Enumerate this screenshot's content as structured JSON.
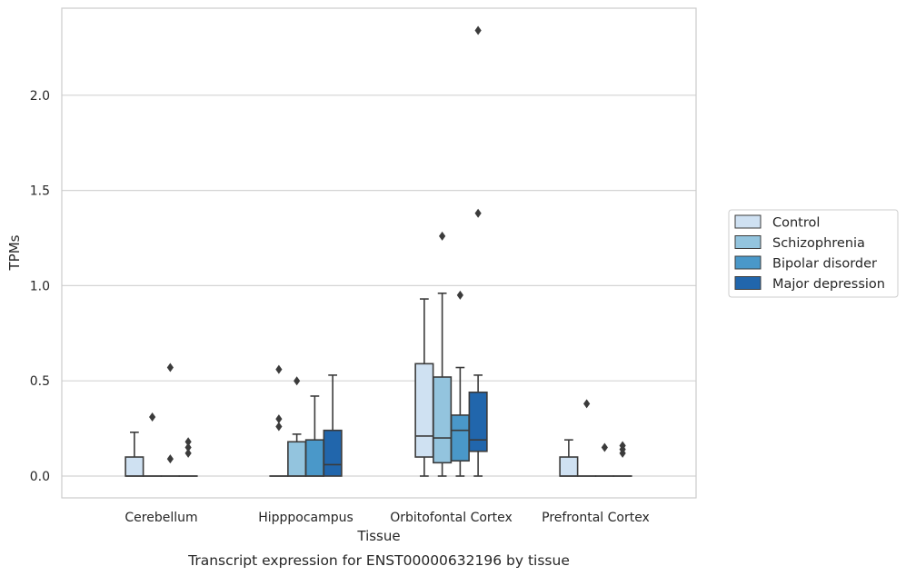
{
  "chart_data": {
    "type": "box",
    "caption": "Transcript expression for ENST00000632196 by tissue",
    "xlabel": "Tissue",
    "ylabel": "TPMs",
    "ylim": [
      -0.11,
      2.46
    ],
    "yticks": [
      0.0,
      0.5,
      1.0,
      1.5,
      2.0
    ],
    "ytick_labels": [
      "0.0",
      "0.5",
      "1.0",
      "1.5",
      "2.0"
    ],
    "grid": "horizontal",
    "legend_position": "right",
    "categories": [
      "Cerebellum",
      "Hipppocampus",
      "Orbitofontal Cortex",
      "Prefrontal Cortex"
    ],
    "series": [
      {
        "name": "Control",
        "color": "#cfe1f2",
        "boxes": [
          {
            "min": 0.0,
            "q1": 0.0,
            "median": 0.0,
            "q3": 0.1,
            "max": 0.23,
            "outliers": []
          },
          {
            "min": 0.0,
            "q1": 0.0,
            "median": 0.0,
            "q3": 0.0,
            "max": 0.0,
            "outliers": [
              0.26,
              0.3,
              0.56
            ]
          },
          {
            "min": 0.0,
            "q1": 0.1,
            "median": 0.21,
            "q3": 0.59,
            "max": 0.93,
            "outliers": []
          },
          {
            "min": 0.0,
            "q1": 0.0,
            "median": 0.0,
            "q3": 0.1,
            "max": 0.19,
            "outliers": []
          }
        ]
      },
      {
        "name": "Schizophrenia",
        "color": "#93c4de",
        "boxes": [
          {
            "min": 0.0,
            "q1": 0.0,
            "median": 0.0,
            "q3": 0.0,
            "max": 0.0,
            "outliers": [
              0.31
            ]
          },
          {
            "min": 0.0,
            "q1": 0.0,
            "median": 0.0,
            "q3": 0.18,
            "max": 0.22,
            "outliers": [
              0.5
            ]
          },
          {
            "min": 0.0,
            "q1": 0.07,
            "median": 0.2,
            "q3": 0.52,
            "max": 0.96,
            "outliers": [
              1.26
            ]
          },
          {
            "min": 0.0,
            "q1": 0.0,
            "median": 0.0,
            "q3": 0.0,
            "max": 0.0,
            "outliers": [
              0.38
            ]
          }
        ]
      },
      {
        "name": "Bipolar disorder",
        "color": "#4a98c9",
        "boxes": [
          {
            "min": 0.0,
            "q1": 0.0,
            "median": 0.0,
            "q3": 0.0,
            "max": 0.0,
            "outliers": [
              0.09,
              0.57
            ]
          },
          {
            "min": 0.0,
            "q1": 0.0,
            "median": 0.0,
            "q3": 0.19,
            "max": 0.42,
            "outliers": []
          },
          {
            "min": 0.0,
            "q1": 0.08,
            "median": 0.24,
            "q3": 0.32,
            "max": 0.57,
            "outliers": [
              0.95
            ]
          },
          {
            "min": 0.0,
            "q1": 0.0,
            "median": 0.0,
            "q3": 0.0,
            "max": 0.0,
            "outliers": [
              0.15
            ]
          }
        ]
      },
      {
        "name": "Major depression",
        "color": "#2166ac",
        "boxes": [
          {
            "min": 0.0,
            "q1": 0.0,
            "median": 0.0,
            "q3": 0.0,
            "max": 0.0,
            "outliers": [
              0.12,
              0.15,
              0.18
            ]
          },
          {
            "min": 0.0,
            "q1": 0.0,
            "median": 0.06,
            "q3": 0.24,
            "max": 0.53,
            "outliers": []
          },
          {
            "min": 0.0,
            "q1": 0.13,
            "median": 0.19,
            "q3": 0.44,
            "max": 0.53,
            "outliers": [
              1.38,
              2.34
            ]
          },
          {
            "min": 0.0,
            "q1": 0.0,
            "median": 0.0,
            "q3": 0.0,
            "max": 0.0,
            "outliers": [
              0.12,
              0.14,
              0.16
            ]
          }
        ]
      }
    ]
  }
}
